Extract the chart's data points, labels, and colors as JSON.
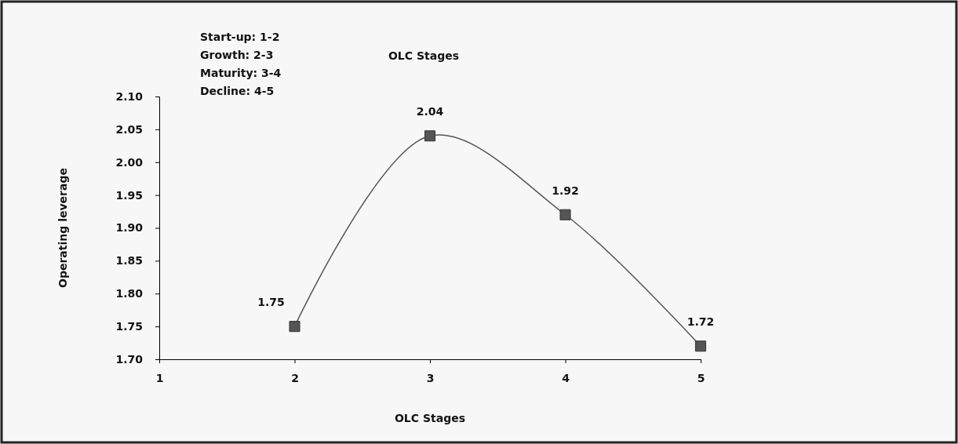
{
  "chart_data": {
    "type": "line",
    "title": "OLC Stages",
    "xlabel": "OLC Stages",
    "ylabel": "Operating leverage",
    "annotations": [
      "Start-up: 1-2",
      "Growth: 2-3",
      "Maturity: 3-4",
      "Decline: 4-5"
    ],
    "x": [
      2,
      3,
      4,
      5
    ],
    "series": [
      {
        "color": "#555555",
        "values": [
          1.75,
          2.04,
          1.92,
          1.72
        ]
      }
    ],
    "xlim": [
      1,
      5
    ],
    "xticks": [
      1,
      2,
      3,
      4,
      5
    ],
    "ylim": [
      1.7,
      2.1
    ],
    "yticks": [
      {
        "value": 1.7,
        "label": "1.70"
      },
      {
        "value": 1.75,
        "label": "1.75"
      },
      {
        "value": 1.8,
        "label": "1.80"
      },
      {
        "value": 1.85,
        "label": "1.85"
      },
      {
        "value": 1.9,
        "label": "1.90"
      },
      {
        "value": 1.95,
        "label": "1.95"
      },
      {
        "value": 2.0,
        "label": "2.00"
      },
      {
        "value": 2.05,
        "label": "2.05"
      },
      {
        "value": 2.1,
        "label": "2.10"
      }
    ],
    "data_labels": true,
    "marker": "square",
    "line_style": "solid"
  }
}
